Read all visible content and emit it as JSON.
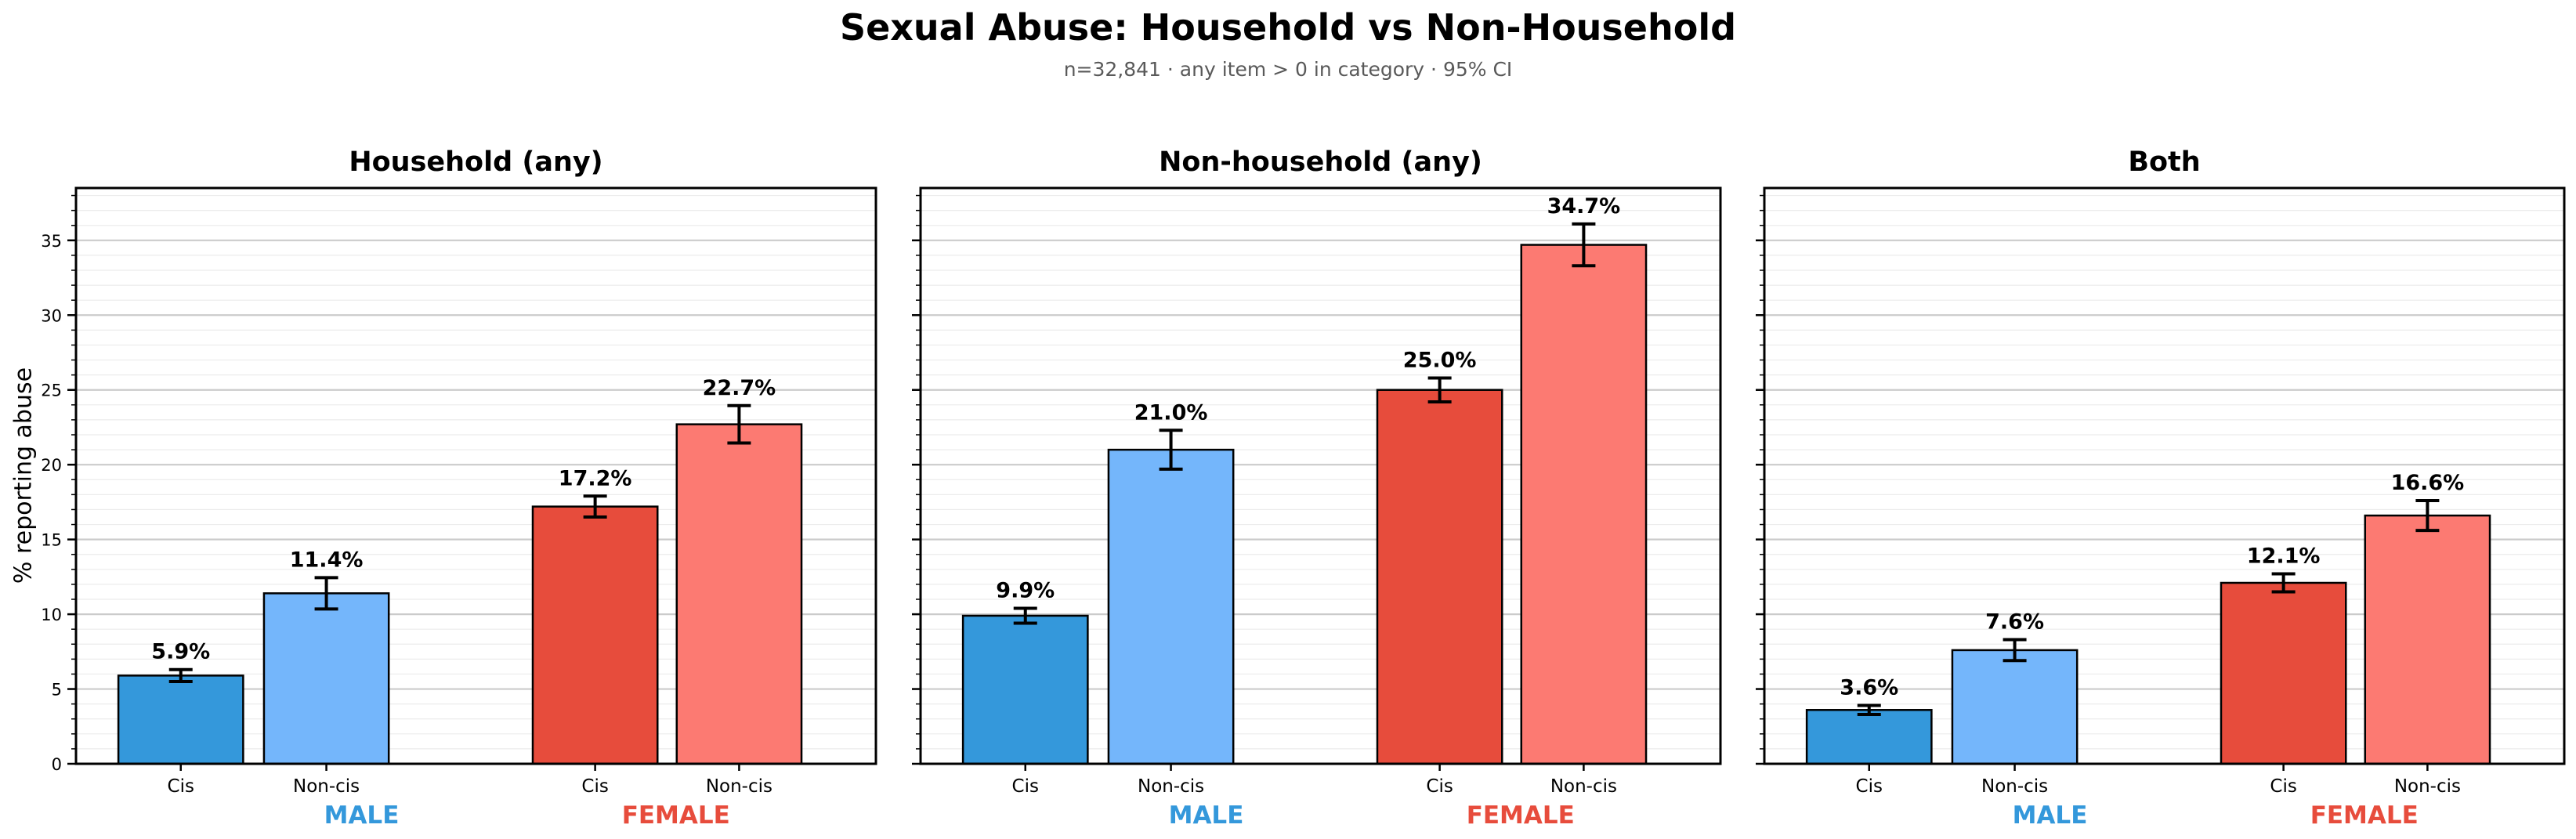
{
  "chart_data": {
    "type": "bar",
    "title": "Sexual Abuse: Household vs Non-Household",
    "subtitle": "n=32,841 · any item > 0 in category · 95% CI",
    "ylabel": "% reporting abuse",
    "ylim": [
      0,
      38.5
    ],
    "y_major_ticks": [
      0,
      5,
      10,
      15,
      20,
      25,
      30,
      35
    ],
    "grid": "horizontal, minor every 1, major every 5",
    "legend_position": "none",
    "categories": [
      "Cis",
      "Non-cis",
      "Cis",
      "Non-cis"
    ],
    "bar_colors": [
      "#3498DB",
      "#74B6FB",
      "#E74C3C",
      "#FC7A72"
    ],
    "group_labels": [
      {
        "label": "MALE",
        "color": "#3498DB"
      },
      {
        "label": "FEMALE",
        "color": "#E74C3C"
      }
    ],
    "panels": [
      {
        "title": "Household (any)",
        "values": [
          5.9,
          11.4,
          17.2,
          22.7
        ],
        "labels": [
          "5.9%",
          "11.4%",
          "17.2%",
          "22.7%"
        ],
        "ci_low": [
          5.5,
          10.35,
          16.5,
          21.45
        ],
        "ci_high": [
          6.3,
          12.45,
          17.9,
          23.95
        ]
      },
      {
        "title": "Non-household (any)",
        "values": [
          9.9,
          21.0,
          25.0,
          34.7
        ],
        "labels": [
          "9.9%",
          "21.0%",
          "25.0%",
          "34.7%"
        ],
        "ci_low": [
          9.4,
          19.7,
          24.2,
          33.3
        ],
        "ci_high": [
          10.4,
          22.3,
          25.8,
          36.1
        ]
      },
      {
        "title": "Both",
        "values": [
          3.6,
          7.6,
          12.1,
          16.6
        ],
        "labels": [
          "3.6%",
          "7.6%",
          "12.1%",
          "16.6%"
        ],
        "ci_low": [
          3.3,
          6.9,
          11.5,
          15.6
        ],
        "ci_high": [
          3.9,
          8.3,
          12.7,
          17.6
        ]
      }
    ]
  }
}
